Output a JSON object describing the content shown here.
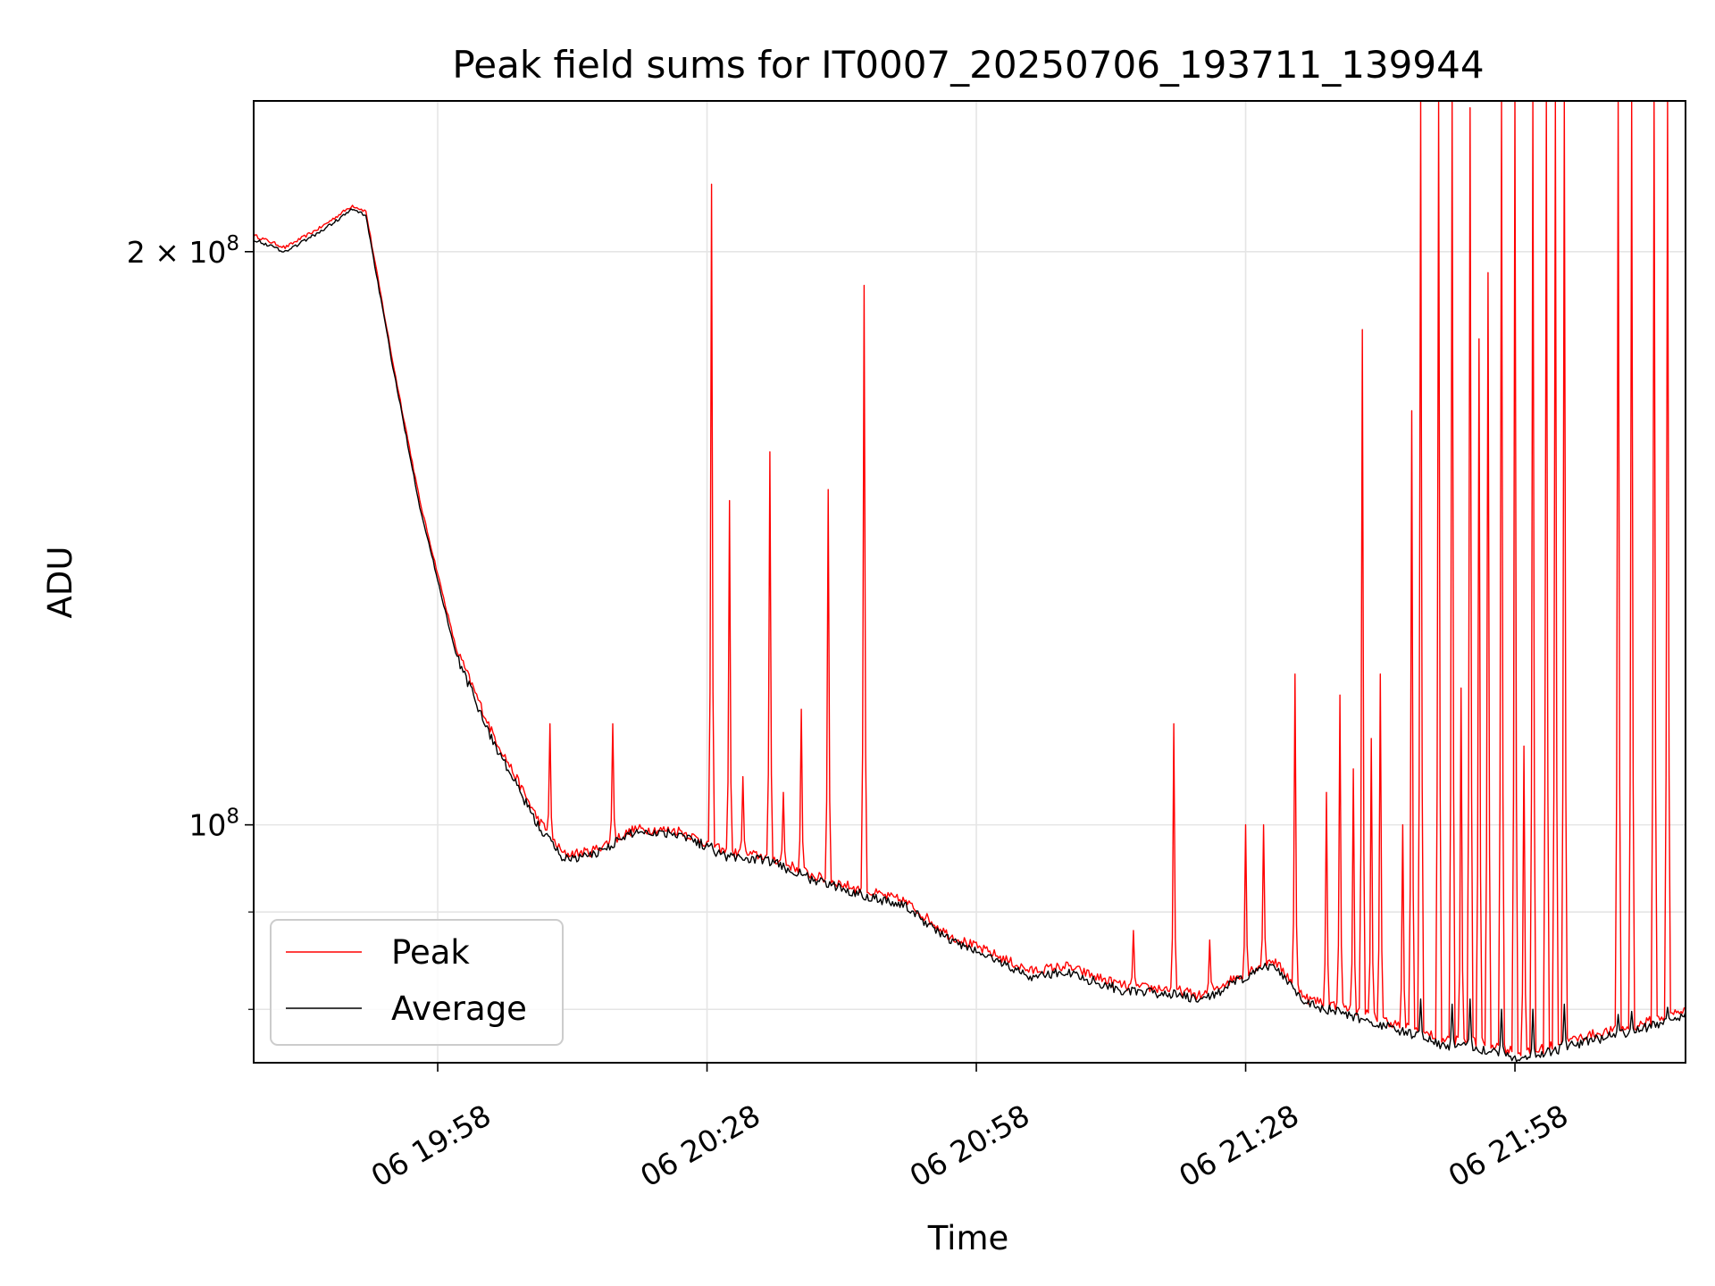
{
  "chart_data": {
    "type": "line",
    "title": "Peak field sums for IT0007_20250706_193711_139944",
    "xlabel": "Time",
    "ylabel": "ADU",
    "yscale": "log",
    "grid": true,
    "legend_position": "lower-left",
    "xlim": [
      "2025-07-06 19:37:30",
      "2025-07-06 22:17:00"
    ],
    "ylim": [
      75000000,
      240000000
    ],
    "x_ticks": [
      {
        "label": "06 19:58",
        "time": "2025-07-06 19:58"
      },
      {
        "label": "06 20:28",
        "time": "2025-07-06 20:28"
      },
      {
        "label": "06 20:58",
        "time": "2025-07-06 20:58"
      },
      {
        "label": "06 21:28",
        "time": "2025-07-06 21:28"
      },
      {
        "label": "06 21:58",
        "time": "2025-07-06 21:58"
      }
    ],
    "y_ticks": [
      {
        "label_base": "2 × 10",
        "label_exp": "8",
        "value": 200000000
      },
      {
        "label_base": "10",
        "label_exp": "8",
        "value": 100000000
      }
    ],
    "y_minor_gridlines": [
      80000000,
      90000000
    ],
    "series": [
      {
        "name": "Peak",
        "color": "#ff0000",
        "baseline_points": [
          [
            "2025-07-06 19:37:30",
            204000000
          ],
          [
            "2025-07-06 19:41:00",
            201000000
          ],
          [
            "2025-07-06 19:45:00",
            206000000
          ],
          [
            "2025-07-06 19:48:30",
            211500000
          ],
          [
            "2025-07-06 19:50:00",
            210000000
          ],
          [
            "2025-07-06 19:53:00",
            175000000
          ],
          [
            "2025-07-06 19:56:00",
            148000000
          ],
          [
            "2025-07-06 20:00:00",
            124000000
          ],
          [
            "2025-07-06 20:04:00",
            112000000
          ],
          [
            "2025-07-06 20:09:00",
            101000000
          ],
          [
            "2025-07-06 20:12:00",
            96500000
          ],
          [
            "2025-07-06 20:15:00",
            96800000
          ],
          [
            "2025-07-06 20:20:00",
            99500000
          ],
          [
            "2025-07-06 20:25:00",
            99300000
          ],
          [
            "2025-07-06 20:30:00",
            96800000
          ],
          [
            "2025-07-06 20:35:00",
            96200000
          ],
          [
            "2025-07-06 20:40:00",
            94000000
          ],
          [
            "2025-07-06 20:45:00",
            92500000
          ],
          [
            "2025-07-06 20:50:00",
            91200000
          ],
          [
            "2025-07-06 20:55:00",
            87500000
          ],
          [
            "2025-07-06 21:00:00",
            85500000
          ],
          [
            "2025-07-06 21:04:00",
            83800000
          ],
          [
            "2025-07-06 21:08:00",
            84300000
          ],
          [
            "2025-07-06 21:12:00",
            83000000
          ],
          [
            "2025-07-06 21:15:00",
            82200000
          ],
          [
            "2025-07-06 21:20:00",
            82000000
          ],
          [
            "2025-07-06 21:23:00",
            81300000
          ],
          [
            "2025-07-06 21:27:00",
            83200000
          ],
          [
            "2025-07-06 21:31:00",
            85000000
          ],
          [
            "2025-07-06 21:35:00",
            81000000
          ],
          [
            "2025-07-06 21:40:00",
            80000000
          ],
          [
            "2025-07-06 21:45:00",
            78500000
          ],
          [
            "2025-07-06 21:50:00",
            77200000
          ],
          [
            "2025-07-06 21:55:00",
            76800000
          ],
          [
            "2025-07-06 21:59:00",
            75800000
          ],
          [
            "2025-07-06 22:02:00",
            76500000
          ],
          [
            "2025-07-06 22:06:00",
            77500000
          ],
          [
            "2025-07-06 22:11:00",
            78300000
          ],
          [
            "2025-07-06 22:17:00",
            80000000
          ]
        ],
        "spikes": [
          [
            "2025-07-06 20:03:30",
            111000000
          ],
          [
            "2025-07-06 20:10:30",
            113000000
          ],
          [
            "2025-07-06 20:17:30",
            113000000
          ],
          [
            "2025-07-06 20:28:30",
            217000000
          ],
          [
            "2025-07-06 20:30:30",
            148000000
          ],
          [
            "2025-07-06 20:32:00",
            106000000
          ],
          [
            "2025-07-06 20:35:00",
            157000000
          ],
          [
            "2025-07-06 20:36:30",
            104000000
          ],
          [
            "2025-07-06 20:38:30",
            115000000
          ],
          [
            "2025-07-06 20:41:30",
            150000000
          ],
          [
            "2025-07-06 20:45:30",
            192000000
          ],
          [
            "2025-07-06 21:15:30",
            88000000
          ],
          [
            "2025-07-06 21:20:00",
            113000000
          ],
          [
            "2025-07-06 21:24:00",
            87000000
          ],
          [
            "2025-07-06 21:28:00",
            100000000
          ],
          [
            "2025-07-06 21:30:00",
            100000000
          ],
          [
            "2025-07-06 21:33:30",
            120000000
          ],
          [
            "2025-07-06 21:37:00",
            104000000
          ],
          [
            "2025-07-06 21:38:30",
            117000000
          ],
          [
            "2025-07-06 21:40:00",
            107000000
          ],
          [
            "2025-07-06 21:41:00",
            182000000
          ],
          [
            "2025-07-06 21:42:00",
            111000000
          ],
          [
            "2025-07-06 21:43:00",
            120000000
          ],
          [
            "2025-07-06 21:45:30",
            100000000
          ],
          [
            "2025-07-06 21:46:30",
            165000000
          ],
          [
            "2025-07-06 21:47:30",
            240000000
          ],
          [
            "2025-07-06 21:49:30",
            240000000
          ],
          [
            "2025-07-06 21:51:00",
            240000000
          ],
          [
            "2025-07-06 21:52:00",
            118000000
          ],
          [
            "2025-07-06 21:53:00",
            238000000
          ],
          [
            "2025-07-06 21:54:00",
            180000000
          ],
          [
            "2025-07-06 21:55:00",
            195000000
          ],
          [
            "2025-07-06 21:56:30",
            240000000
          ],
          [
            "2025-07-06 21:58:00",
            240000000
          ],
          [
            "2025-07-06 21:59:00",
            110000000
          ],
          [
            "2025-07-06 22:00:00",
            240000000
          ],
          [
            "2025-07-06 22:01:30",
            240000000
          ],
          [
            "2025-07-06 22:02:30",
            240000000
          ],
          [
            "2025-07-06 22:03:30",
            240000000
          ],
          [
            "2025-07-06 22:09:30",
            240000000
          ],
          [
            "2025-07-06 22:11:00",
            240000000
          ],
          [
            "2025-07-06 22:13:30",
            240000000
          ],
          [
            "2025-07-06 22:15:00",
            240000000
          ]
        ]
      },
      {
        "name": "Average",
        "color": "#000000",
        "baseline_points": [
          [
            "2025-07-06 19:37:30",
            203000000
          ],
          [
            "2025-07-06 19:41:00",
            200000000
          ],
          [
            "2025-07-06 19:45:00",
            205000000
          ],
          [
            "2025-07-06 19:48:30",
            210500000
          ],
          [
            "2025-07-06 19:50:00",
            209000000
          ],
          [
            "2025-07-06 19:53:00",
            174000000
          ],
          [
            "2025-07-06 19:56:00",
            147000000
          ],
          [
            "2025-07-06 20:00:00",
            123000000
          ],
          [
            "2025-07-06 20:04:00",
            111000000
          ],
          [
            "2025-07-06 20:09:00",
            100200000
          ],
          [
            "2025-07-06 20:12:00",
            96000000
          ],
          [
            "2025-07-06 20:15:00",
            96300000
          ],
          [
            "2025-07-06 20:20:00",
            99200000
          ],
          [
            "2025-07-06 20:25:00",
            99000000
          ],
          [
            "2025-07-06 20:30:00",
            96300000
          ],
          [
            "2025-07-06 20:35:00",
            95700000
          ],
          [
            "2025-07-06 20:40:00",
            93500000
          ],
          [
            "2025-07-06 20:45:00",
            92000000
          ],
          [
            "2025-07-06 20:50:00",
            90700000
          ],
          [
            "2025-07-06 20:55:00",
            87000000
          ],
          [
            "2025-07-06 21:00:00",
            85000000
          ],
          [
            "2025-07-06 21:04:00",
            83200000
          ],
          [
            "2025-07-06 21:08:00",
            83700000
          ],
          [
            "2025-07-06 21:12:00",
            82500000
          ],
          [
            "2025-07-06 21:15:00",
            81700000
          ],
          [
            "2025-07-06 21:20:00",
            81500000
          ],
          [
            "2025-07-06 21:23:00",
            80800000
          ],
          [
            "2025-07-06 21:27:00",
            82700000
          ],
          [
            "2025-07-06 21:31:00",
            84500000
          ],
          [
            "2025-07-06 21:35:00",
            80500000
          ],
          [
            "2025-07-06 21:40:00",
            79300000
          ],
          [
            "2025-07-06 21:45:00",
            78000000
          ],
          [
            "2025-07-06 21:50:00",
            76600000
          ],
          [
            "2025-07-06 21:55:00",
            76200000
          ],
          [
            "2025-07-06 21:59:00",
            75300000
          ],
          [
            "2025-07-06 22:02:00",
            76000000
          ],
          [
            "2025-07-06 22:06:00",
            77000000
          ],
          [
            "2025-07-06 22:11:00",
            77800000
          ],
          [
            "2025-07-06 22:17:00",
            79500000
          ]
        ],
        "spikes": [
          [
            "2025-07-06 20:28:30",
            97800000
          ],
          [
            "2025-07-06 21:47:30",
            81000000
          ],
          [
            "2025-07-06 21:51:00",
            80500000
          ],
          [
            "2025-07-06 21:53:00",
            81000000
          ],
          [
            "2025-07-06 21:56:30",
            80000000
          ],
          [
            "2025-07-06 22:00:00",
            80000000
          ],
          [
            "2025-07-06 22:03:30",
            80500000
          ],
          [
            "2025-07-06 22:09:30",
            79500000
          ],
          [
            "2025-07-06 22:11:00",
            79800000
          ],
          [
            "2025-07-06 22:15:00",
            80200000
          ]
        ]
      }
    ]
  }
}
